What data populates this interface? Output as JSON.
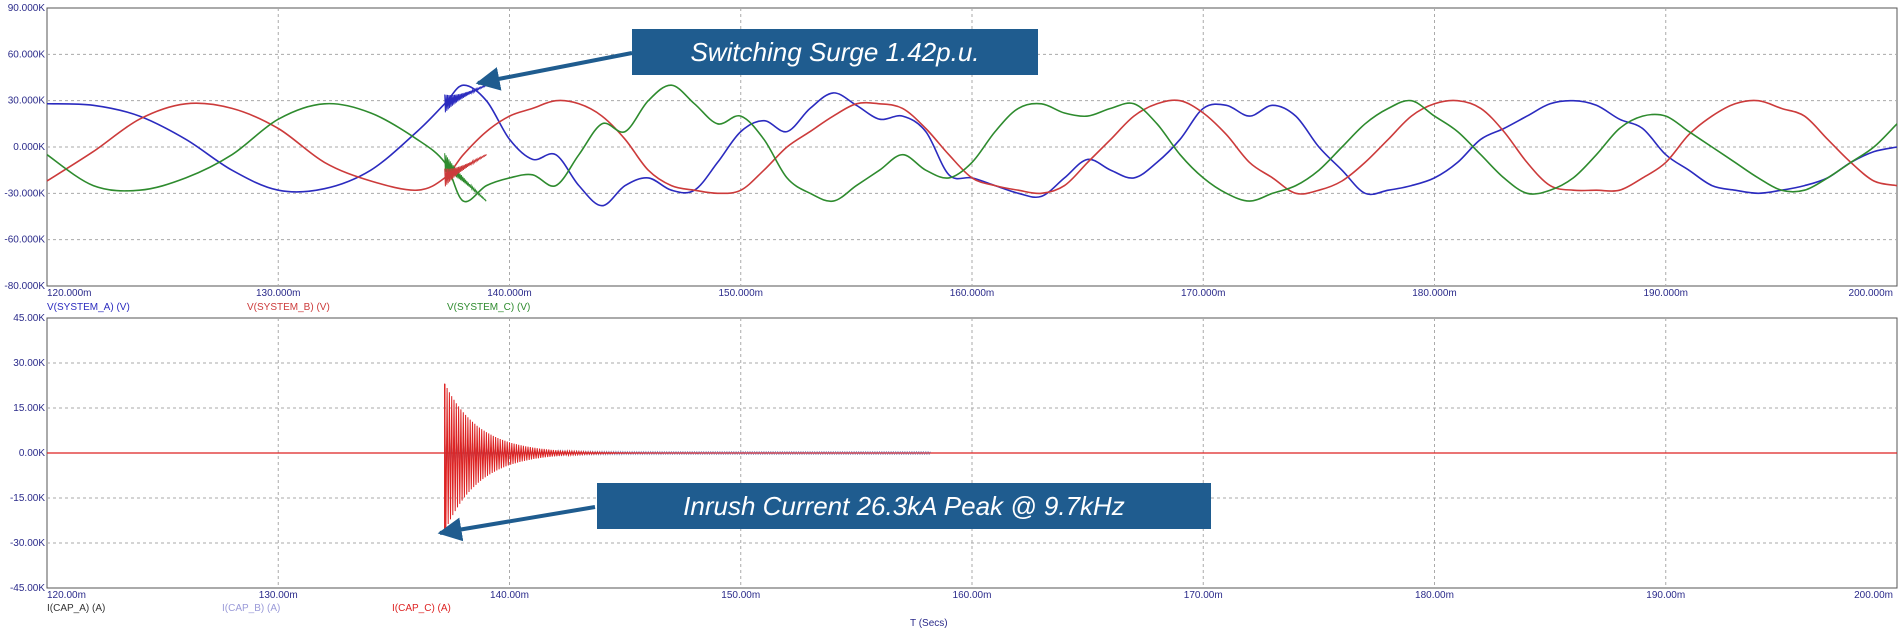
{
  "chart_data": [
    {
      "type": "line",
      "panel": "voltage",
      "xlim": [
        120,
        200
      ],
      "ylim": [
        -90,
        90
      ],
      "x_ticks": [
        "120.000m",
        "130.000m",
        "140.000m",
        "150.000m",
        "160.000m",
        "170.000m",
        "180.000m",
        "190.000m",
        "200.000m"
      ],
      "y_ticks": [
        "90.000K",
        "60.000K",
        "30.000K",
        "0.000K",
        "-30.000K",
        "-60.000K",
        "-80.000K"
      ],
      "grid": true,
      "series": [
        {
          "name": "V(SYSTEM_A) (V)",
          "color": "#2b2bbf",
          "x": [
            120,
            122,
            124,
            126,
            128,
            130,
            132,
            134,
            136,
            137.2,
            138,
            139,
            140,
            141,
            142,
            143,
            144,
            145,
            146,
            147,
            148,
            149,
            150,
            151,
            152,
            153,
            154,
            155,
            156,
            157,
            158,
            159,
            160,
            161,
            162,
            163,
            164,
            165,
            166,
            167,
            168,
            169,
            170,
            171,
            172,
            173,
            174,
            175,
            176,
            177,
            178,
            179,
            180,
            181,
            182,
            183,
            184,
            185,
            186,
            187,
            188,
            189,
            190,
            191,
            192,
            193,
            194,
            195,
            196,
            197,
            198,
            199,
            200
          ],
          "values": [
            28,
            27,
            20,
            5,
            -15,
            -28,
            -27,
            -15,
            10,
            28,
            40,
            30,
            5,
            -8,
            -5,
            -25,
            -38,
            -25,
            -20,
            -28,
            -28,
            -10,
            10,
            17,
            10,
            25,
            35,
            27,
            18,
            20,
            10,
            -18,
            -20,
            -25,
            -30,
            -32,
            -20,
            -8,
            -15,
            -20,
            -10,
            5,
            25,
            27,
            20,
            27,
            20,
            0,
            -15,
            -30,
            -28,
            -25,
            -20,
            -10,
            5,
            12,
            20,
            28,
            30,
            27,
            18,
            12,
            -5,
            -15,
            -25,
            -28,
            -30,
            -28,
            -25,
            -20,
            -10,
            -3,
            0
          ]
        },
        {
          "name": "V(SYSTEM_B) (V)",
          "color": "#cc3b3b",
          "x": [
            120,
            122,
            124,
            126,
            128,
            130,
            132,
            134,
            136,
            137.2,
            138,
            139,
            140,
            141,
            142,
            143,
            144,
            145,
            146,
            147,
            148,
            149,
            150,
            151,
            152,
            153,
            154,
            155,
            156,
            157,
            158,
            159,
            160,
            161,
            162,
            163,
            164,
            165,
            166,
            167,
            168,
            169,
            170,
            171,
            172,
            173,
            174,
            175,
            176,
            177,
            178,
            179,
            180,
            181,
            182,
            183,
            184,
            185,
            186,
            187,
            188,
            189,
            190,
            191,
            192,
            193,
            194,
            195,
            196,
            197,
            198,
            199,
            200
          ],
          "values": [
            -22,
            -3,
            18,
            28,
            25,
            12,
            -10,
            -22,
            -28,
            -20,
            -5,
            10,
            20,
            25,
            30,
            28,
            20,
            5,
            -15,
            -25,
            -28,
            -30,
            -28,
            -15,
            0,
            10,
            20,
            28,
            28,
            25,
            12,
            -5,
            -20,
            -25,
            -28,
            -30,
            -25,
            -10,
            5,
            20,
            28,
            30,
            22,
            8,
            -10,
            -20,
            -30,
            -28,
            -22,
            -10,
            5,
            20,
            28,
            30,
            25,
            10,
            -10,
            -25,
            -28,
            -28,
            -28,
            -20,
            -10,
            8,
            20,
            28,
            30,
            25,
            20,
            5,
            -10,
            -22,
            -25
          ]
        },
        {
          "name": "V(SYSTEM_C) (V)",
          "color": "#2e8b2e",
          "x": [
            120,
            122,
            124,
            126,
            128,
            130,
            132,
            134,
            136,
            137.2,
            138,
            139,
            140,
            141,
            142,
            143,
            144,
            145,
            146,
            147,
            148,
            149,
            150,
            151,
            152,
            153,
            154,
            155,
            156,
            157,
            158,
            159,
            160,
            161,
            162,
            163,
            164,
            165,
            166,
            167,
            168,
            169,
            170,
            171,
            172,
            173,
            174,
            175,
            176,
            177,
            178,
            179,
            180,
            181,
            182,
            183,
            184,
            185,
            186,
            187,
            188,
            189,
            190,
            191,
            192,
            193,
            194,
            195,
            196,
            197,
            198,
            199,
            200
          ],
          "values": [
            -5,
            -25,
            -28,
            -20,
            -5,
            18,
            28,
            22,
            5,
            -10,
            -35,
            -25,
            -20,
            -18,
            -25,
            -5,
            15,
            10,
            30,
            40,
            28,
            15,
            20,
            5,
            -20,
            -30,
            -35,
            -25,
            -15,
            -5,
            -15,
            -20,
            -10,
            10,
            25,
            28,
            22,
            20,
            25,
            28,
            15,
            -5,
            -20,
            -30,
            -35,
            -30,
            -25,
            -15,
            0,
            15,
            25,
            30,
            20,
            10,
            -5,
            -20,
            -30,
            -28,
            -20,
            -5,
            12,
            20,
            20,
            10,
            0,
            -10,
            -20,
            -28,
            -28,
            -20,
            -10,
            0,
            15
          ]
        }
      ],
      "annotation": "Switching Surge 1.42p.u."
    },
    {
      "type": "line",
      "panel": "current",
      "xlim": [
        120,
        200
      ],
      "ylim": [
        -45,
        45
      ],
      "x_ticks": [
        "120.00m",
        "130.00m",
        "140.00m",
        "150.00m",
        "160.00m",
        "170.00m",
        "180.00m",
        "190.00m",
        "200.00m"
      ],
      "y_ticks": [
        "45.00K",
        "30.00K",
        "15.00K",
        "0.00K",
        "-15.00K",
        "-30.00K",
        "-45.00K"
      ],
      "xlabel": "T (Secs)",
      "grid": true,
      "series": [
        {
          "name": "I(CAP_A) (A)",
          "color": "#333333"
        },
        {
          "name": "I(CAP_B) (A)",
          "color": "#9a9ad8"
        },
        {
          "name": "I(CAP_C) (A)",
          "color": "#dd2222"
        }
      ],
      "burst": {
        "start_x": 137.2,
        "peak_pos": 23,
        "peak_neg": -26.3,
        "decay_ms": 1.5,
        "freq_khz": 9.7
      },
      "annotation": "Inrush Current 26.3kA Peak @ 9.7kHz"
    }
  ]
}
